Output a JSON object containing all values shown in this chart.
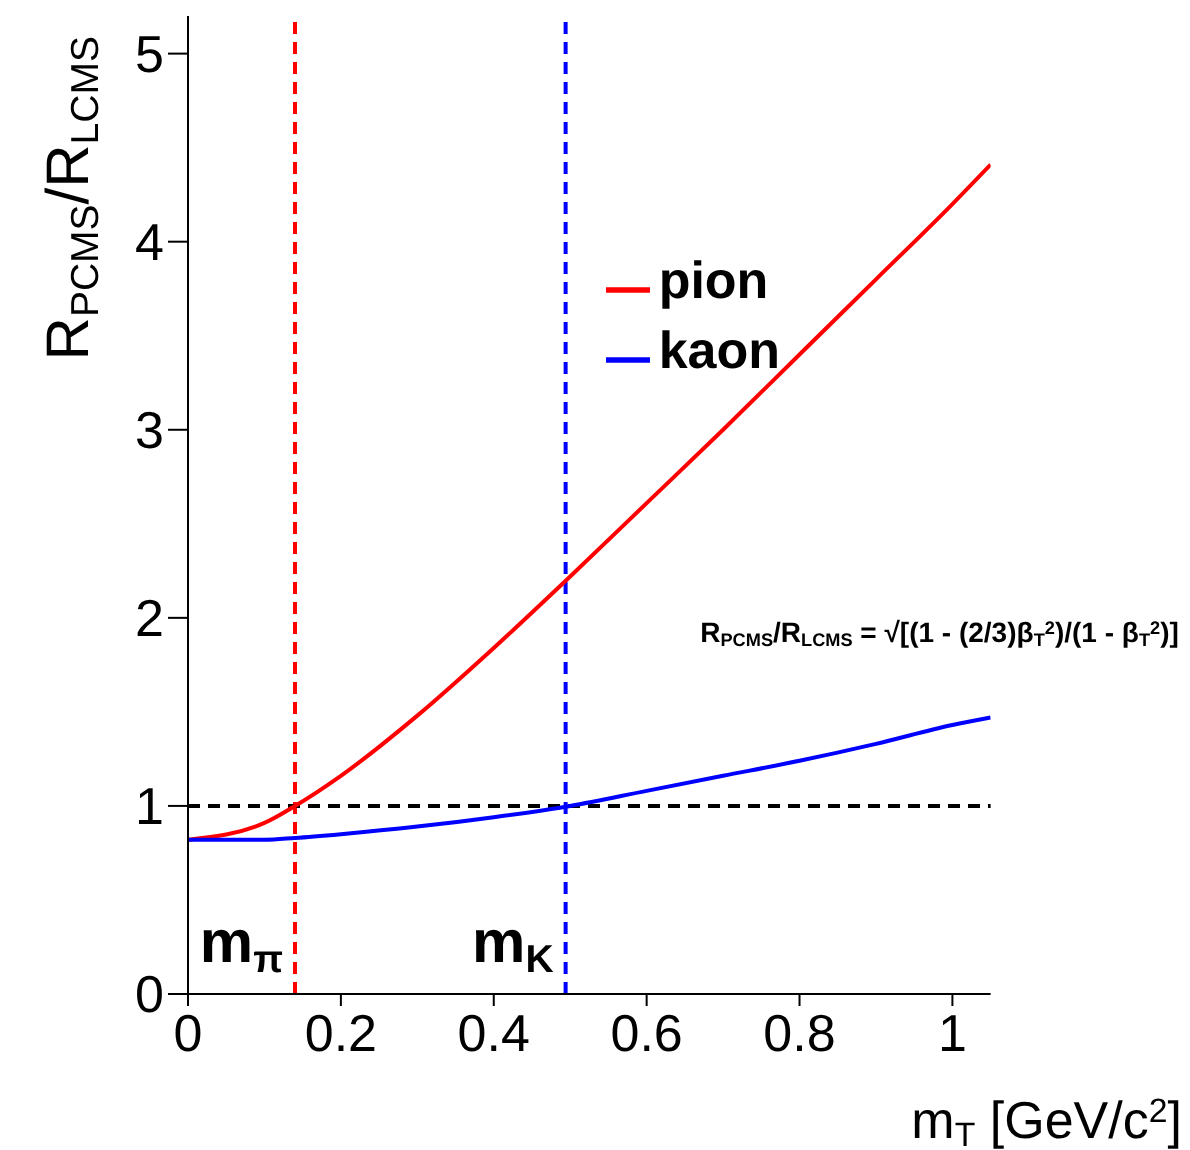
{
  "chart_data": {
    "type": "line",
    "xlabel": "m$_{T}$ [GeV/c$^{2}$]",
    "ylabel": "R$_{PCMS}$/R$_{LCMS}$",
    "xlim": [
      0,
      1.05
    ],
    "ylim": [
      0,
      5.2
    ],
    "xticks": [
      0,
      0.2,
      0.4,
      0.6,
      0.8,
      1
    ],
    "yticks": [
      0,
      1,
      2,
      3,
      4,
      5
    ],
    "x": [
      0,
      0.1,
      0.14,
      0.2,
      0.3,
      0.4,
      0.5,
      0.6,
      0.7,
      0.8,
      0.9,
      1,
      1.05
    ],
    "series": [
      {
        "name": "pion",
        "color": "#ff0000",
        "values": [
          0.82,
          0.91,
          1,
          1.16,
          1.48,
          1.84,
          2.22,
          2.61,
          3,
          3.4,
          3.8,
          4.2,
          4.41
        ]
      },
      {
        "name": "kaon",
        "color": "#0000ff",
        "values": [
          0.82,
          0.82,
          0.83,
          0.85,
          0.89,
          0.94,
          1,
          1.08,
          1.16,
          1.24,
          1.33,
          1.43,
          1.47
        ]
      }
    ],
    "ref_lines": [
      {
        "axis": "x",
        "value": 0.14,
        "label": "m$_{π}$",
        "color": "#ff0000",
        "line_style": "dashed"
      },
      {
        "axis": "x",
        "value": 0.494,
        "label": "m$_{K}$",
        "color": "#0000ff",
        "line_style": "dashed"
      },
      {
        "axis": "y",
        "value": 1,
        "label": null,
        "color": "#000000",
        "line_style": "dashed"
      }
    ],
    "annotations": [
      "R$_{PCMS}$/R$_{LCMS}$ = √[(1 - (2/3)β$_{T}$$^{2}$)/(1 - β$_{T}$$^{2}$)]"
    ],
    "legend": "top right",
    "grid": false,
    "marker": "none",
    "line_style": "solid"
  }
}
